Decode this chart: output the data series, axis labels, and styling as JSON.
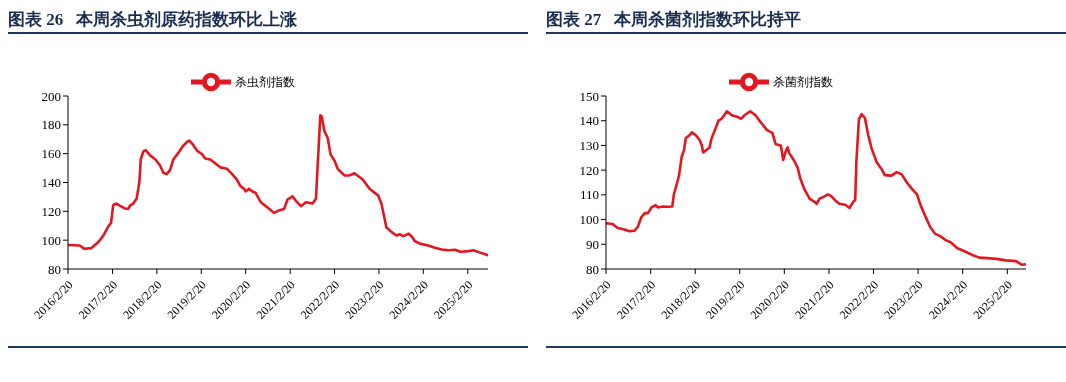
{
  "chart_data": [
    {
      "type": "line",
      "title": "图表 26   本周杀虫剂原药指数环比上涨",
      "legend": "top",
      "xlim": [
        "2016-02-20",
        "2025-08-05"
      ],
      "xticks": [
        {
          "value": "2016-02-20",
          "label": "2016/2/20"
        },
        {
          "value": "2017-02-20",
          "label": "2017/2/20"
        },
        {
          "value": "2018-02-20",
          "label": "2018/2/20"
        },
        {
          "value": "2019-02-20",
          "label": "2019/2/20"
        },
        {
          "value": "2020-02-20",
          "label": "2020/2/20"
        },
        {
          "value": "2021-02-20",
          "label": "2021/2/20"
        },
        {
          "value": "2022-02-20",
          "label": "2022/2/20"
        },
        {
          "value": "2023-02-20",
          "label": "2023/2/20"
        },
        {
          "value": "2024-02-20",
          "label": "2024/2/20"
        },
        {
          "value": "2025-02-20",
          "label": "2025/2/20"
        }
      ],
      "ylim": [
        80,
        200
      ],
      "yticks": [
        80,
        100,
        120,
        140,
        160,
        180,
        200
      ],
      "x": [
        "2016-02-20",
        "2016-05-26",
        "2016-07-05",
        "2016-08-30",
        "2016-10-25",
        "2016-12-05",
        "2017-01-17",
        "2017-02-08",
        "2017-02-26",
        "2017-03-24",
        "2017-04-20",
        "2017-06-01",
        "2017-06-29",
        "2017-07-14",
        "2017-08-10",
        "2017-09-07",
        "2017-09-29",
        "2017-10-10",
        "2017-11-01",
        "2017-11-20",
        "2017-12-26",
        "2018-02-08",
        "2018-03-17",
        "2018-04-14",
        "2018-05-12",
        "2018-06-08",
        "2018-07-05",
        "2018-08-17",
        "2018-09-22",
        "2018-10-26",
        "2018-11-14",
        "2018-12-05",
        "2019-01-17",
        "2019-02-26",
        "2019-03-24",
        "2019-05-05",
        "2019-06-17",
        "2019-07-26",
        "2019-09-20",
        "2019-11-01",
        "2019-12-10",
        "2020-01-08",
        "2020-02-08",
        "2020-02-20",
        "2020-03-18",
        "2020-04-15",
        "2020-05-12",
        "2020-06-23",
        "2020-08-18",
        "2020-10-12",
        "2020-11-23",
        "2021-01-02",
        "2021-01-29",
        "2021-03-12",
        "2021-04-08",
        "2021-05-20",
        "2021-06-29",
        "2021-08-23",
        "2021-09-20",
        "2021-10-05",
        "2021-10-26",
        "2021-11-07",
        "2021-11-29",
        "2021-12-26",
        "2022-01-17",
        "2022-02-20",
        "2022-03-18",
        "2022-05-12",
        "2022-06-23",
        "2022-08-02",
        "2022-10-10",
        "2022-12-05",
        "2023-01-17",
        "2023-02-14",
        "2023-03-12",
        "2023-04-02",
        "2023-04-23",
        "2023-06-02",
        "2023-07-14",
        "2023-08-10",
        "2023-09-07",
        "2023-10-23",
        "2023-11-20",
        "2023-12-11",
        "2024-01-23",
        "2024-03-31",
        "2024-05-26",
        "2024-07-20",
        "2024-09-13",
        "2024-11-07",
        "2024-12-20",
        "2025-02-26",
        "2025-04-08",
        "2025-05-20",
        "2025-08-05"
      ],
      "series": [
        {
          "name": "杀虫剂指数",
          "color": "#e3171f",
          "values": [
            96.7,
            96.3,
            94,
            94.5,
            98.5,
            103,
            109.6,
            112,
            124.5,
            125.4,
            124,
            122,
            121.7,
            124,
            125.4,
            129,
            140.3,
            156,
            161.6,
            162.5,
            158.8,
            156,
            152,
            146.8,
            145.8,
            148.6,
            156,
            160.7,
            165.3,
            168.1,
            169,
            167.2,
            162,
            159.7,
            156.6,
            156,
            153.2,
            150.5,
            149.5,
            145.8,
            142,
            137.5,
            135.6,
            133.8,
            135.6,
            133.8,
            132.8,
            126.3,
            122.6,
            118.9,
            120.8,
            121.7,
            128.2,
            130.4,
            127.3,
            123.6,
            126.3,
            125.4,
            128.8,
            153.2,
            186.6,
            185.7,
            175.5,
            170.9,
            159.7,
            155.1,
            149.5,
            144.9,
            144.9,
            146.4,
            142.1,
            135.6,
            132.8,
            131,
            125.4,
            117.1,
            108.7,
            105.9,
            103.2,
            104.1,
            102.8,
            104.5,
            102.2,
            99.4,
            97.6,
            96.3,
            94.8,
            93.5,
            93,
            93.3,
            92,
            92.4,
            93,
            91.7,
            89.6
          ]
        }
      ]
    },
    {
      "type": "line",
      "title": "图表 27   本周杀菌剂指数环比持平",
      "legend": "top",
      "xlim": [
        "2016-02-20",
        "2025-07-23"
      ],
      "xticks": [
        {
          "value": "2016-02-20",
          "label": "2016/2/20"
        },
        {
          "value": "2017-02-20",
          "label": "2017/2/20"
        },
        {
          "value": "2018-02-20",
          "label": "2018/2/20"
        },
        {
          "value": "2019-02-20",
          "label": "2019/2/20"
        },
        {
          "value": "2020-02-20",
          "label": "2020/2/20"
        },
        {
          "value": "2021-02-20",
          "label": "2021/2/20"
        },
        {
          "value": "2022-02-20",
          "label": "2022/2/20"
        },
        {
          "value": "2023-02-20",
          "label": "2023/2/20"
        },
        {
          "value": "2024-02-20",
          "label": "2024/2/20"
        },
        {
          "value": "2025-02-20",
          "label": "2025/2/20"
        }
      ],
      "ylim": [
        80,
        150
      ],
      "yticks": [
        80,
        90,
        100,
        110,
        120,
        130,
        140,
        150
      ],
      "x": [
        "2016-02-20",
        "2016-04-14",
        "2016-05-26",
        "2016-07-20",
        "2016-08-30",
        "2016-10-11",
        "2016-11-07",
        "2016-12-05",
        "2017-01-02",
        "2017-01-29",
        "2017-02-26",
        "2017-04-02",
        "2017-04-20",
        "2017-06-01",
        "2017-07-11",
        "2017-08-16",
        "2017-08-29",
        "2017-09-20",
        "2017-10-10",
        "2017-11-01",
        "2017-11-20",
        "2017-12-05",
        "2018-01-02",
        "2018-01-23",
        "2018-02-20",
        "2018-03-26",
        "2018-04-14",
        "2018-04-26",
        "2018-05-23",
        "2018-06-17",
        "2018-07-05",
        "2018-08-02",
        "2018-08-29",
        "2018-09-26",
        "2018-11-07",
        "2018-12-17",
        "2019-01-29",
        "2019-03-04",
        "2019-03-29",
        "2019-05-17",
        "2019-06-29",
        "2019-08-08",
        "2019-10-02",
        "2019-11-14",
        "2019-12-10",
        "2020-01-23",
        "2020-02-11",
        "2020-03-02",
        "2020-03-18",
        "2020-03-30",
        "2020-05-12",
        "2020-06-08",
        "2020-06-29",
        "2020-08-02",
        "2020-09-14",
        "2020-10-17",
        "2020-11-11",
        "2020-12-05",
        "2021-01-02",
        "2021-02-11",
        "2021-03-08",
        "2021-04-20",
        "2021-05-17",
        "2021-07-02",
        "2021-08-08",
        "2021-09-05",
        "2021-09-23",
        "2021-10-02",
        "2021-10-23",
        "2021-11-14",
        "2021-12-11",
        "2022-01-08",
        "2022-02-05",
        "2022-03-18",
        "2022-04-26",
        "2022-05-23",
        "2022-07-17",
        "2022-08-29",
        "2022-10-08",
        "2022-11-20",
        "2023-01-02",
        "2023-02-11",
        "2023-03-08",
        "2023-04-14",
        "2023-05-29",
        "2023-07-11",
        "2023-08-20",
        "2023-10-02",
        "2023-11-14",
        "2024-01-08",
        "2024-03-02",
        "2024-05-08",
        "2024-07-05",
        "2024-09-11",
        "2024-11-20",
        "2025-02-11",
        "2025-05-02",
        "2025-06-20",
        "2025-07-23"
      ],
      "series": [
        {
          "name": "杀菌剂指数",
          "color": "#e3171f",
          "values": [
            98.5,
            98.2,
            96.6,
            96,
            95.3,
            95.5,
            97.1,
            100.9,
            102.6,
            102.6,
            104.9,
            105.8,
            104.9,
            105.3,
            105.2,
            105.3,
            110.2,
            114,
            117.8,
            125.4,
            128.1,
            133,
            134,
            135.3,
            134.4,
            132.4,
            130.2,
            127.2,
            128.1,
            129.2,
            133,
            136.4,
            140,
            140.9,
            143.8,
            142.2,
            141.6,
            140.8,
            142.2,
            143.8,
            142.2,
            139.5,
            136.2,
            135.1,
            130.6,
            129.9,
            124.1,
            127.5,
            129.2,
            127,
            123.7,
            121,
            116.7,
            112.3,
            108.5,
            107.4,
            106.4,
            108.5,
            109.1,
            110.2,
            109.6,
            107.4,
            106.4,
            106,
            104.7,
            107.1,
            108,
            123.2,
            140.6,
            142.7,
            141.1,
            134,
            128.6,
            123.2,
            120.5,
            118,
            117.8,
            119.2,
            118.3,
            115,
            112.3,
            110.2,
            106.4,
            102,
            97.1,
            94.2,
            93.3,
            91.7,
            90.8,
            88.4,
            87.3,
            85.7,
            84.6,
            84.4,
            84.1,
            83.5,
            83.2,
            81.7,
            81.9
          ]
        }
      ]
    }
  ]
}
